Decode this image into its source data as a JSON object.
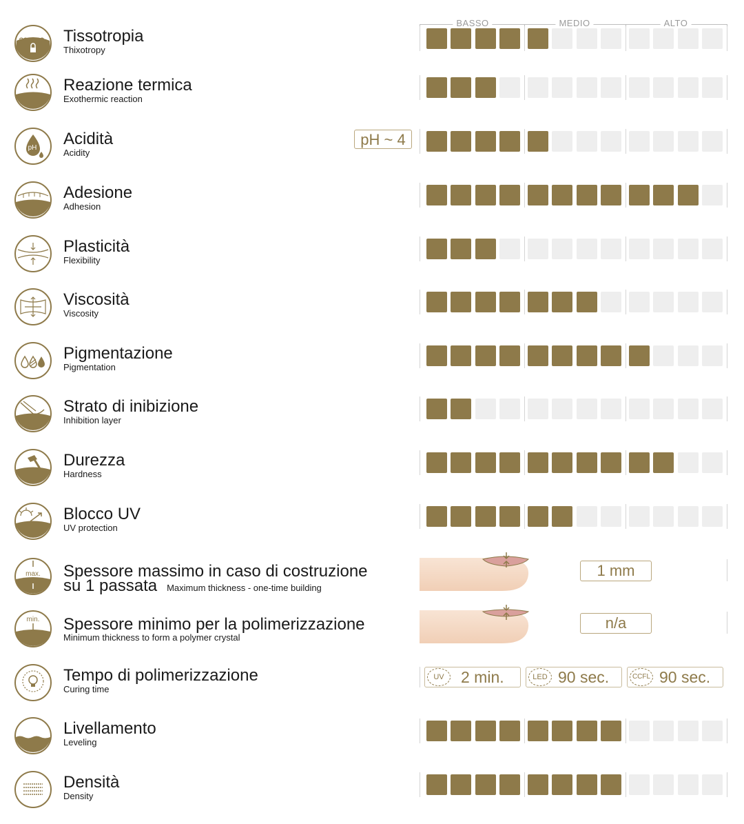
{
  "scale": {
    "low": "BASSO",
    "mid": "MEDIO",
    "high": "ALTO"
  },
  "colors": {
    "accent": "#8e7a4a",
    "empty": "#eeeeee",
    "border": "#b9a67c"
  },
  "rows": [
    {
      "title": "Tissotropia",
      "subtitle": "Thixotropy",
      "icon": "thixotropy-icon",
      "level": 5
    },
    {
      "title": "Reazione termica",
      "subtitle": "Exothermic reaction",
      "icon": "heat-icon",
      "level": 3
    },
    {
      "title": "Acidità",
      "subtitle": "Acidity",
      "icon": "acidity-ph-icon",
      "icon_text": "pH",
      "level": 5,
      "badge": "pH ~ 4"
    },
    {
      "title": "Adesione",
      "subtitle": "Adhesion",
      "icon": "adhesion-icon",
      "level": 11
    },
    {
      "title": "Plasticità",
      "subtitle": "Flexibility",
      "icon": "flexibility-icon",
      "level": 3
    },
    {
      "title": "Viscosità",
      "subtitle": "Viscosity",
      "icon": "viscosity-icon",
      "level": 7
    },
    {
      "title": "Pigmentazione",
      "subtitle": "Pigmentation",
      "icon": "pigmentation-drops-icon",
      "level": 9
    },
    {
      "title": "Strato di inibizione",
      "subtitle": "Inhibition layer",
      "icon": "inhibition-layer-icon",
      "level": 2
    },
    {
      "title": "Durezza",
      "subtitle": "Hardness",
      "icon": "hammer-icon",
      "level": 10
    },
    {
      "title": "Blocco UV",
      "subtitle": "UV protection",
      "icon": "uv-sun-icon",
      "level": 6
    }
  ],
  "thickness": [
    {
      "title": "Spessore massimo in caso di costruzione",
      "title_line2": "su 1 passata",
      "subtitle": "Maximum thickness - one-time building",
      "icon": "max-thickness-icon",
      "icon_text": "max.",
      "value": "1 mm"
    },
    {
      "title": "Spessore minimo per la polimerizzazione",
      "subtitle": "Minimum thickness to form a polymer crystal",
      "icon": "min-thickness-icon",
      "icon_text": "min.",
      "value": "n/a"
    }
  ],
  "curing": {
    "title": "Tempo di polimerizzazione",
    "subtitle": "Curing time",
    "icon": "lamp-icon",
    "items": [
      {
        "lamp": "UV",
        "time": "2 min."
      },
      {
        "lamp": "LED",
        "time": "90 sec."
      },
      {
        "lamp": "CCFL",
        "time": "90 sec."
      }
    ]
  },
  "rows_bottom": [
    {
      "title": "Livellamento",
      "subtitle": "Leveling",
      "icon": "leveling-icon",
      "level": 8
    },
    {
      "title": "Densità",
      "subtitle": "Density",
      "icon": "density-icon",
      "level": 8
    }
  ],
  "max_level": 12
}
